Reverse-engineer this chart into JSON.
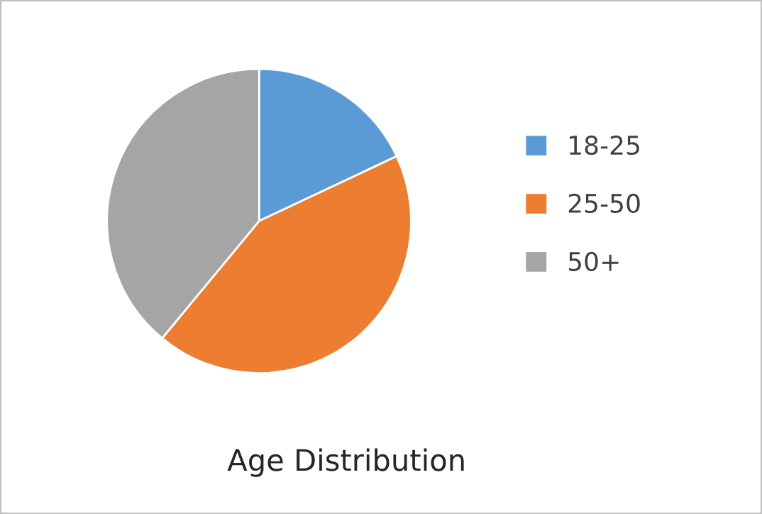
{
  "chart_data": {
    "type": "pie",
    "title": "Age Distribution",
    "categories": [
      "18-25",
      "25-50",
      "50+"
    ],
    "values": [
      18,
      43,
      39
    ],
    "colors": [
      "#5b9bd5",
      "#ed7d31",
      "#a5a5a5"
    ],
    "legend": "right"
  }
}
